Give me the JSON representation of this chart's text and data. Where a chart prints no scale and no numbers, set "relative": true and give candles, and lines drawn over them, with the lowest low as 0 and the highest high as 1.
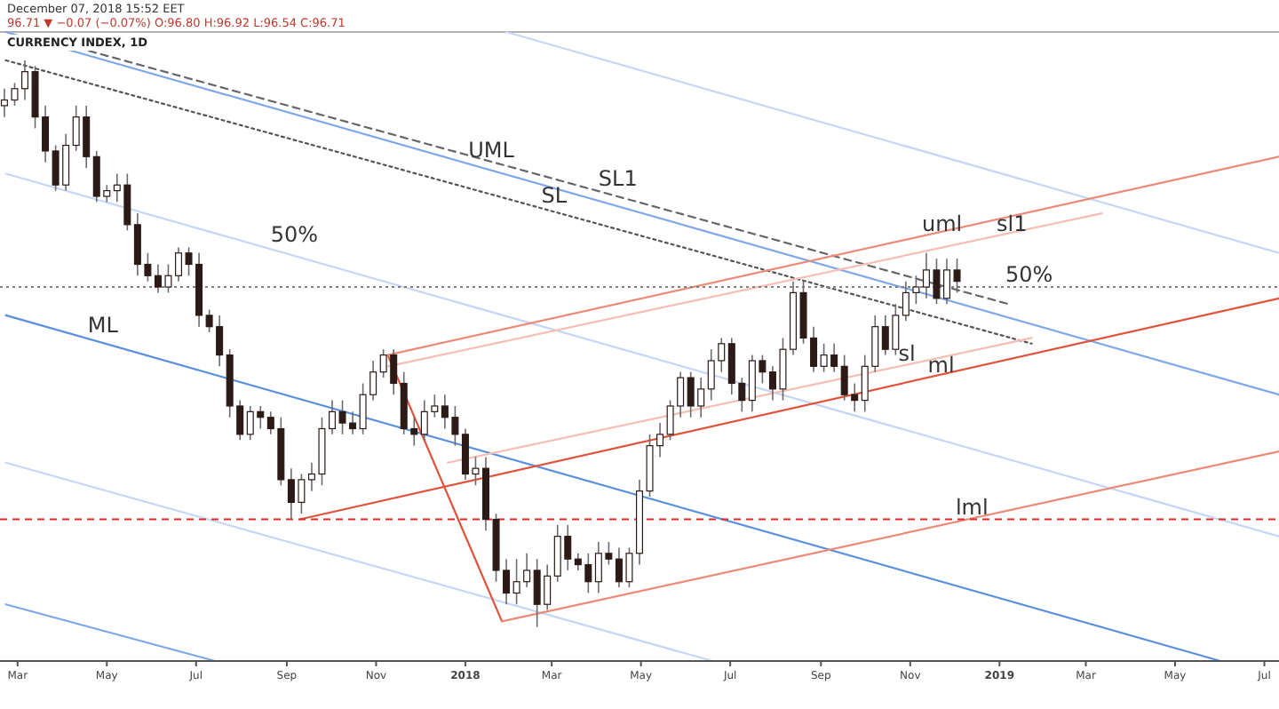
{
  "chart_data": {
    "type": "candlestick",
    "title": "CURRENCY INDEX, 1D",
    "relative": true,
    "grid": false,
    "annotations": [
      "December 07, 2018 15:52 EET",
      "96.71 ▼ −0.07 (−0.07%) O:96.80 H:96.92 L:96.54 C:96.71",
      {
        "text": "UML",
        "x": "2018-01-03",
        "y": 0.82
      },
      {
        "text": "SL1",
        "x": "2018-04-02",
        "y": 0.77
      },
      {
        "text": "SL",
        "x": "2018-02-22",
        "y": 0.74
      },
      {
        "text": "50%",
        "x": "2017-08-21",
        "y": 0.67
      },
      {
        "text": "ML",
        "x": "2017-04-18",
        "y": 0.51
      },
      {
        "text": "uml",
        "x": "2018-11-09",
        "y": 0.69
      },
      {
        "text": "sl1",
        "x": "2018-12-30",
        "y": 0.69
      },
      {
        "text": "sl",
        "x": "2018-10-24",
        "y": 0.46
      },
      {
        "text": "ml",
        "x": "2018-11-13",
        "y": 0.44
      },
      {
        "text": "lml",
        "x": "2018-12-02",
        "y": 0.19
      },
      {
        "text": "50%",
        "x": "2019-01-05",
        "y": 0.6
      }
    ],
    "xlim": [
      "2017-02-17",
      "2019-07-11"
    ],
    "xticks": [
      {
        "value": "2017-03-01",
        "label": "Mar"
      },
      {
        "value": "2017-05-01",
        "label": "May"
      },
      {
        "value": "2017-07-01",
        "label": "Jul"
      },
      {
        "value": "2017-09-01",
        "label": "Sep"
      },
      {
        "value": "2017-11-01",
        "label": "Nov"
      },
      {
        "value": "2018-01-01",
        "label": "2018"
      },
      {
        "value": "2018-03-01",
        "label": "Mar"
      },
      {
        "value": "2018-05-01",
        "label": "May"
      },
      {
        "value": "2018-07-01",
        "label": "Jul"
      },
      {
        "value": "2018-09-01",
        "label": "Sep"
      },
      {
        "value": "2018-11-01",
        "label": "Nov"
      },
      {
        "value": "2019-01-01",
        "label": "2019"
      },
      {
        "value": "2019-03-01",
        "label": "Mar"
      },
      {
        "value": "2019-05-01",
        "label": "May"
      },
      {
        "value": "2019-07-01",
        "label": "Jul"
      }
    ],
    "color": "#2b1a16",
    "x": [
      "2017-02-20",
      "2017-02-27",
      "2017-03-06",
      "2017-03-13",
      "2017-03-20",
      "2017-03-27",
      "2017-04-03",
      "2017-04-10",
      "2017-04-17",
      "2017-04-24",
      "2017-05-01",
      "2017-05-08",
      "2017-05-15",
      "2017-05-22",
      "2017-05-29",
      "2017-06-05",
      "2017-06-12",
      "2017-06-19",
      "2017-06-26",
      "2017-07-03",
      "2017-07-10",
      "2017-07-17",
      "2017-07-24",
      "2017-07-31",
      "2017-08-07",
      "2017-08-14",
      "2017-08-21",
      "2017-08-28",
      "2017-09-04",
      "2017-09-11",
      "2017-09-18",
      "2017-09-25",
      "2017-10-02",
      "2017-10-09",
      "2017-10-16",
      "2017-10-23",
      "2017-10-30",
      "2017-11-06",
      "2017-11-13",
      "2017-11-20",
      "2017-11-27",
      "2017-12-04",
      "2017-12-11",
      "2017-12-18",
      "2017-12-25",
      "2018-01-01",
      "2018-01-08",
      "2018-01-15",
      "2018-01-22",
      "2018-01-29",
      "2018-02-05",
      "2018-02-12",
      "2018-02-19",
      "2018-02-26",
      "2018-03-05",
      "2018-03-12",
      "2018-03-19",
      "2018-03-26",
      "2018-04-02",
      "2018-04-09",
      "2018-04-16",
      "2018-04-23",
      "2018-04-30",
      "2018-05-07",
      "2018-05-14",
      "2018-05-21",
      "2018-05-28",
      "2018-06-04",
      "2018-06-11",
      "2018-06-18",
      "2018-06-25",
      "2018-07-02",
      "2018-07-09",
      "2018-07-16",
      "2018-07-23",
      "2018-07-30",
      "2018-08-06",
      "2018-08-13",
      "2018-08-20",
      "2018-08-27",
      "2018-09-03",
      "2018-09-10",
      "2018-09-17",
      "2018-09-24",
      "2018-10-01",
      "2018-10-08",
      "2018-10-15",
      "2018-10-22",
      "2018-10-29",
      "2018-11-05",
      "2018-11-12",
      "2018-11-19",
      "2018-11-26",
      "2018-12-03"
    ],
    "ohlc": [
      [
        0.92,
        0.95,
        0.9,
        0.93
      ],
      [
        0.93,
        0.96,
        0.92,
        0.95
      ],
      [
        0.95,
        1,
        0.93,
        0.98
      ],
      [
        0.98,
        0.99,
        0.88,
        0.9
      ],
      [
        0.9,
        0.92,
        0.82,
        0.84
      ],
      [
        0.84,
        0.85,
        0.77,
        0.78
      ],
      [
        0.78,
        0.87,
        0.77,
        0.85
      ],
      [
        0.85,
        0.92,
        0.84,
        0.9
      ],
      [
        0.9,
        0.92,
        0.81,
        0.83
      ],
      [
        0.83,
        0.84,
        0.75,
        0.76
      ],
      [
        0.76,
        0.78,
        0.75,
        0.77
      ],
      [
        0.77,
        0.8,
        0.75,
        0.78
      ],
      [
        0.78,
        0.8,
        0.7,
        0.71
      ],
      [
        0.71,
        0.73,
        0.62,
        0.64
      ],
      [
        0.64,
        0.66,
        0.61,
        0.62
      ],
      [
        0.62,
        0.64,
        0.59,
        0.6
      ],
      [
        0.6,
        0.64,
        0.59,
        0.62
      ],
      [
        0.62,
        0.67,
        0.61,
        0.66
      ],
      [
        0.66,
        0.67,
        0.62,
        0.64
      ],
      [
        0.64,
        0.66,
        0.53,
        0.55
      ],
      [
        0.55,
        0.56,
        0.52,
        0.53
      ],
      [
        0.53,
        0.55,
        0.46,
        0.48
      ],
      [
        0.48,
        0.49,
        0.37,
        0.39
      ],
      [
        0.39,
        0.4,
        0.33,
        0.34
      ],
      [
        0.34,
        0.39,
        0.33,
        0.38
      ],
      [
        0.38,
        0.39,
        0.35,
        0.37
      ],
      [
        0.37,
        0.38,
        0.34,
        0.35
      ],
      [
        0.35,
        0.37,
        0.25,
        0.26
      ],
      [
        0.26,
        0.28,
        0.19,
        0.22
      ],
      [
        0.22,
        0.27,
        0.2,
        0.26
      ],
      [
        0.26,
        0.29,
        0.24,
        0.27
      ],
      [
        0.27,
        0.37,
        0.25,
        0.35
      ],
      [
        0.35,
        0.4,
        0.34,
        0.38
      ],
      [
        0.38,
        0.4,
        0.34,
        0.36
      ],
      [
        0.36,
        0.38,
        0.34,
        0.35
      ],
      [
        0.35,
        0.43,
        0.34,
        0.41
      ],
      [
        0.41,
        0.47,
        0.4,
        0.45
      ],
      [
        0.45,
        0.49,
        0.44,
        0.48
      ],
      [
        0.48,
        0.49,
        0.41,
        0.43
      ],
      [
        0.43,
        0.45,
        0.34,
        0.35
      ],
      [
        0.35,
        0.37,
        0.32,
        0.34
      ],
      [
        0.34,
        0.4,
        0.33,
        0.38
      ],
      [
        0.38,
        0.41,
        0.37,
        0.39
      ],
      [
        0.39,
        0.41,
        0.35,
        0.37
      ],
      [
        0.37,
        0.39,
        0.32,
        0.34
      ],
      [
        0.34,
        0.35,
        0.26,
        0.27
      ],
      [
        0.27,
        0.3,
        0.25,
        0.28
      ],
      [
        0.28,
        0.3,
        0.17,
        0.19
      ],
      [
        0.19,
        0.2,
        0.08,
        0.1
      ],
      [
        0.1,
        0.12,
        0.04,
        0.06
      ],
      [
        0.06,
        0.12,
        0.04,
        0.08
      ],
      [
        0.08,
        0.13,
        0.07,
        0.1
      ],
      [
        0.1,
        0.12,
        0,
        0.04
      ],
      [
        0.04,
        0.11,
        0.03,
        0.09
      ],
      [
        0.09,
        0.18,
        0.08,
        0.16
      ],
      [
        0.16,
        0.18,
        0.1,
        0.12
      ],
      [
        0.12,
        0.13,
        0.1,
        0.11
      ],
      [
        0.11,
        0.13,
        0.06,
        0.08
      ],
      [
        0.08,
        0.15,
        0.06,
        0.13
      ],
      [
        0.13,
        0.15,
        0.11,
        0.12
      ],
      [
        0.12,
        0.14,
        0.07,
        0.08
      ],
      [
        0.08,
        0.14,
        0.07,
        0.13
      ],
      [
        0.13,
        0.26,
        0.11,
        0.24
      ],
      [
        0.24,
        0.34,
        0.23,
        0.32
      ],
      [
        0.32,
        0.36,
        0.3,
        0.34
      ],
      [
        0.34,
        0.4,
        0.33,
        0.39
      ],
      [
        0.39,
        0.45,
        0.37,
        0.44
      ],
      [
        0.44,
        0.45,
        0.37,
        0.39
      ],
      [
        0.39,
        0.44,
        0.37,
        0.42
      ],
      [
        0.42,
        0.49,
        0.4,
        0.47
      ],
      [
        0.47,
        0.51,
        0.45,
        0.5
      ],
      [
        0.5,
        0.51,
        0.41,
        0.43
      ],
      [
        0.43,
        0.44,
        0.38,
        0.4
      ],
      [
        0.4,
        0.48,
        0.38,
        0.47
      ],
      [
        0.47,
        0.48,
        0.43,
        0.45
      ],
      [
        0.45,
        0.46,
        0.4,
        0.42
      ],
      [
        0.42,
        0.51,
        0.4,
        0.49
      ],
      [
        0.49,
        0.61,
        0.48,
        0.59
      ],
      [
        0.59,
        0.61,
        0.5,
        0.51
      ],
      [
        0.51,
        0.53,
        0.45,
        0.46
      ],
      [
        0.46,
        0.5,
        0.45,
        0.48
      ],
      [
        0.48,
        0.5,
        0.45,
        0.46
      ],
      [
        0.46,
        0.48,
        0.4,
        0.41
      ],
      [
        0.41,
        0.43,
        0.38,
        0.4
      ],
      [
        0.4,
        0.48,
        0.38,
        0.46
      ],
      [
        0.46,
        0.55,
        0.45,
        0.53
      ],
      [
        0.53,
        0.55,
        0.48,
        0.49
      ],
      [
        0.49,
        0.57,
        0.48,
        0.55
      ],
      [
        0.55,
        0.61,
        0.54,
        0.59
      ],
      [
        0.59,
        0.62,
        0.57,
        0.6
      ],
      [
        0.6,
        0.66,
        0.58,
        0.63
      ],
      [
        0.63,
        0.65,
        0.57,
        0.58
      ],
      [
        0.58,
        0.65,
        0.57,
        0.63
      ],
      [
        0.63,
        0.65,
        0.59,
        0.61
      ]
    ],
    "ref_lines": [
      {
        "axis": "y",
        "value": 0.6,
        "color": "#808080",
        "line_style": "dotted"
      },
      {
        "axis": "y",
        "value": 0.19,
        "color": "#e02828",
        "line_style": "dashed"
      }
    ],
    "series": [
      {
        "type": "line",
        "x": [
          "2017-02-21",
          "2019-06-01"
        ],
        "values": [
          0.55,
          -0.06
        ],
        "color": "#5b8fe0",
        "line_style": "solid"
      },
      {
        "type": "line",
        "x": [
          "2017-02-21",
          "2019-07-11"
        ],
        "values": [
          1.05,
          0.41
        ],
        "color": "#7fa6ea",
        "line_style": "solid"
      },
      {
        "type": "line",
        "x": [
          "2018-01-29",
          "2019-07-11"
        ],
        "values": [
          1.05,
          0.66
        ],
        "color": "#c6d6f5",
        "line_style": "solid"
      },
      {
        "type": "line",
        "x": [
          "2017-02-21",
          "2019-07-11"
        ],
        "values": [
          0.8,
          0.16
        ],
        "color": "#c6d6f5",
        "line_style": "solid"
      },
      {
        "type": "line",
        "x": [
          "2017-02-21",
          "2018-06-19"
        ],
        "values": [
          0.29,
          -0.06
        ],
        "color": "#c6d6f5",
        "line_style": "solid"
      },
      {
        "type": "line",
        "x": [
          "2017-02-21",
          "2017-07-14"
        ],
        "values": [
          0.04,
          -0.06
        ],
        "color": "#7fa6ea",
        "line_style": "solid"
      },
      {
        "type": "line",
        "x": [
          "2017-02-21",
          "2019-01-23"
        ],
        "values": [
          1.0,
          0.5
        ],
        "color": "#555555",
        "line_style": "dotted"
      },
      {
        "type": "line",
        "x": [
          "2017-03-17",
          "2019-01-07"
        ],
        "values": [
          1.04,
          0.57
        ],
        "color": "#666666",
        "line_style": "dashed"
      },
      {
        "type": "line",
        "x": [
          "2017-11-09",
          "2018-01-26"
        ],
        "values": [
          0.48,
          0.01
        ],
        "color": "#e0533a",
        "line_style": "solid"
      },
      {
        "type": "line",
        "x": [
          "2017-09-10",
          "2019-07-11"
        ],
        "values": [
          0.19,
          0.58
        ],
        "color": "#e0533a",
        "line_style": "solid"
      },
      {
        "type": "line",
        "x": [
          "2017-11-09",
          "2019-07-11"
        ],
        "values": [
          0.48,
          0.83
        ],
        "color": "#ec8a78",
        "line_style": "solid"
      },
      {
        "type": "line",
        "x": [
          "2018-01-26",
          "2019-07-11"
        ],
        "values": [
          0.01,
          0.31
        ],
        "color": "#ec8a78",
        "line_style": "solid"
      },
      {
        "type": "line",
        "x": [
          "2017-11-09",
          "2019-03-12"
        ],
        "values": [
          0.46,
          0.73
        ],
        "color": "#f6beb3",
        "line_style": "solid"
      },
      {
        "type": "line",
        "x": [
          "2017-12-20",
          "2019-01-23"
        ],
        "values": [
          0.29,
          0.51
        ],
        "color": "#f6beb3",
        "line_style": "solid"
      }
    ]
  }
}
